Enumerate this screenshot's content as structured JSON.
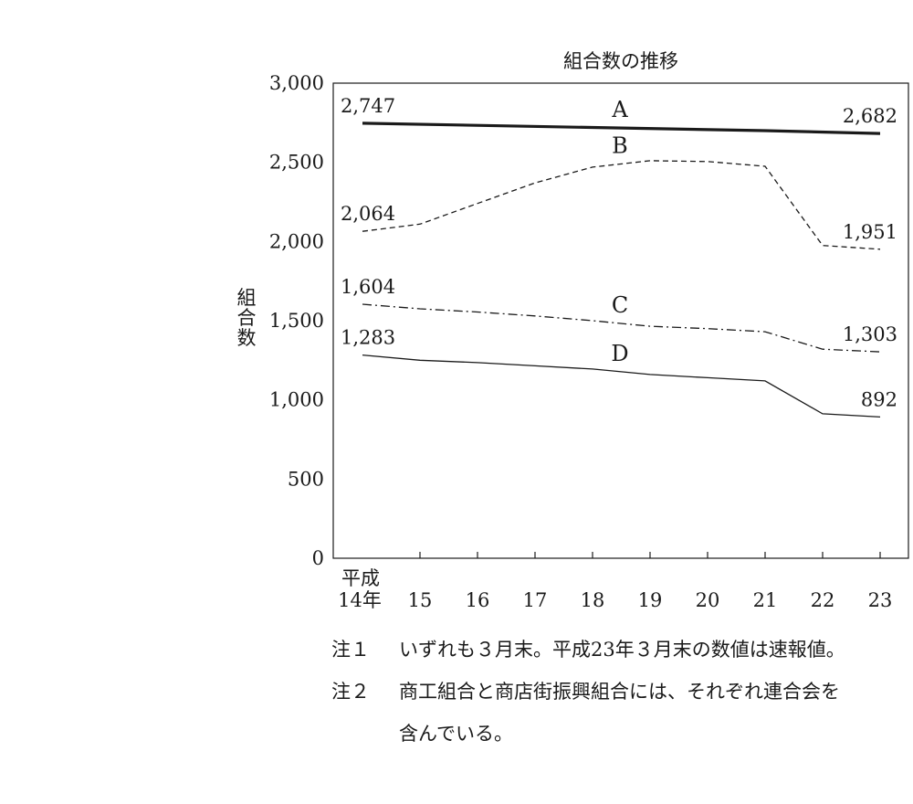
{
  "chart_data": {
    "type": "line",
    "title": "組合数の推移",
    "ylabel": "組合数",
    "xlabel": "",
    "ylim": [
      0,
      3000
    ],
    "y_ticks": [
      "0",
      "500",
      "1,000",
      "1,500",
      "2,000",
      "2,500",
      "3,000"
    ],
    "x_prefix": "平成",
    "categories": [
      "14年",
      "15",
      "16",
      "17",
      "18",
      "19",
      "20",
      "21",
      "22",
      "23"
    ],
    "x_positions": [
      14,
      15,
      16,
      17,
      18,
      19,
      20,
      21,
      22,
      23
    ],
    "grid": false,
    "series": [
      {
        "name": "A",
        "style": "thick-solid",
        "x": [
          14,
          21,
          23
        ],
        "values": [
          2747,
          2700,
          2682
        ],
        "label_start": "2,747",
        "label_end": "2,682"
      },
      {
        "name": "B",
        "style": "dashed",
        "x": [
          14,
          15,
          16,
          17,
          18,
          19,
          20,
          21,
          22,
          23
        ],
        "values": [
          2064,
          2110,
          2240,
          2370,
          2470,
          2510,
          2505,
          2475,
          1975,
          1951
        ],
        "label_start": "2,064",
        "label_end": "1,951"
      },
      {
        "name": "C",
        "style": "dash-dot",
        "x": [
          14,
          15,
          16,
          17,
          18,
          19,
          20,
          21,
          22,
          23
        ],
        "values": [
          1604,
          1575,
          1555,
          1530,
          1500,
          1465,
          1450,
          1430,
          1320,
          1303
        ],
        "label_start": "1,604",
        "label_end": "1,303"
      },
      {
        "name": "D",
        "style": "solid",
        "x": [
          14,
          15,
          16,
          17,
          18,
          19,
          20,
          21,
          22,
          23
        ],
        "values": [
          1283,
          1250,
          1235,
          1215,
          1195,
          1160,
          1140,
          1120,
          912,
          892
        ],
        "label_start": "1,283",
        "label_end": "892"
      }
    ]
  },
  "notes": [
    {
      "label": "注１",
      "text": "いずれも３月末。平成23年３月末の数値は速報値。"
    },
    {
      "label": "注２",
      "text": "商工組合と商店街振興組合には、それぞれ連合会を",
      "text2": "含んでいる。"
    }
  ]
}
